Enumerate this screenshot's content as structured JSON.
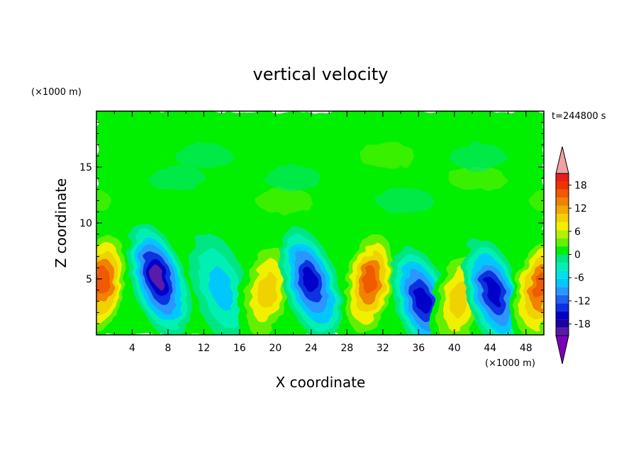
{
  "chart_data": {
    "type": "heatmap",
    "title": "vertical velocity",
    "xlabel": "X coordinate",
    "ylabel": "Z coordinate",
    "x_unit": "(×1000 m)",
    "y_unit": "(×1000 m)",
    "time_label": "t=244800 s",
    "xlim": [
      0,
      50
    ],
    "ylim": [
      0,
      20
    ],
    "x_ticks": [
      "4",
      "8",
      "12",
      "16",
      "20",
      "24",
      "28",
      "32",
      "36",
      "40",
      "44",
      "48"
    ],
    "y_ticks": [
      "5",
      "10",
      "15"
    ],
    "colorbar": {
      "range": [
        -21,
        21
      ],
      "labels": [
        "18",
        "12",
        "6",
        "0",
        "-6",
        "-12",
        "-18"
      ],
      "extend": "both",
      "colors": [
        "#7a00b8",
        "#5a1aa8",
        "#1a00a0",
        "#0000c8",
        "#0a32e0",
        "#1e64f0",
        "#2a96ff",
        "#00c8ff",
        "#00e0e6",
        "#00f0b4",
        "#00e682",
        "#00f000",
        "#64f000",
        "#b4f000",
        "#f0f000",
        "#f0d200",
        "#f0aa00",
        "#f08200",
        "#f05a00",
        "#f03200",
        "#e61e1e",
        "#f0a0a0"
      ]
    },
    "features": [
      {
        "x": 0.5,
        "z": 4.5,
        "w": 14
      },
      {
        "x": 7,
        "z": 4.8,
        "w": -18
      },
      {
        "x": 14,
        "z": 4,
        "w": -6
      },
      {
        "x": 19,
        "z": 3.8,
        "w": 10
      },
      {
        "x": 24,
        "z": 4.5,
        "w": -16
      },
      {
        "x": 30.5,
        "z": 4.5,
        "w": 14
      },
      {
        "x": 36.5,
        "z": 2.8,
        "w": -14
      },
      {
        "x": 40.5,
        "z": 3,
        "w": 10
      },
      {
        "x": 44.5,
        "z": 3.5,
        "w": -16
      },
      {
        "x": 49.5,
        "z": 4,
        "w": 14
      }
    ]
  }
}
